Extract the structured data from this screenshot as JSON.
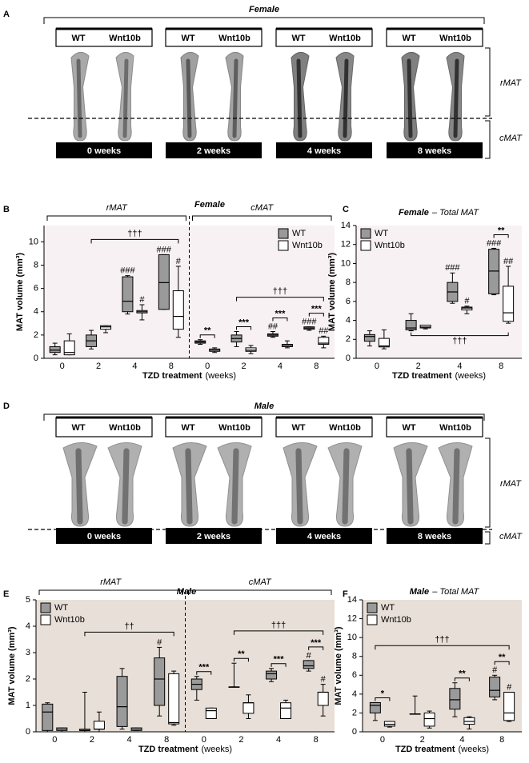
{
  "figure": {
    "panel_letters": [
      "A",
      "B",
      "C",
      "D",
      "E",
      "F"
    ],
    "image_panels": [
      {
        "title": "Female",
        "columns": [
          {
            "genotypes": [
              "WT",
              "Wnt10b"
            ],
            "label": "0 weeks"
          },
          {
            "genotypes": [
              "WT",
              "Wnt10b"
            ],
            "label": "2 weeks"
          },
          {
            "genotypes": [
              "WT",
              "Wnt10b"
            ],
            "label": "4 weeks"
          },
          {
            "genotypes": [
              "WT",
              "Wnt10b"
            ],
            "label": "8 weeks"
          }
        ],
        "regions": [
          "rMAT",
          "cMAT"
        ]
      },
      {
        "title": "Male",
        "columns": [
          {
            "genotypes": [
              "WT",
              "Wnt10b"
            ],
            "label": "0 weeks"
          },
          {
            "genotypes": [
              "WT",
              "Wnt10b"
            ],
            "label": "2 weeks"
          },
          {
            "genotypes": [
              "WT",
              "Wnt10b"
            ],
            "label": "4 weeks"
          },
          {
            "genotypes": [
              "WT",
              "Wnt10b"
            ],
            "label": "8 weeks"
          }
        ],
        "regions": [
          "rMAT",
          "cMAT"
        ]
      }
    ]
  },
  "chart_data": [
    {
      "type": "box",
      "title": "Female",
      "xlabel": "TZD treatment",
      "xlabel_unit": "(weeks)",
      "ylabel": "MAT volume (mm³)",
      "ylim": [
        0,
        11.4
      ],
      "yticks": [
        0,
        2,
        4,
        6,
        8,
        10
      ],
      "background": "#f7f1f3",
      "legend": "upper right",
      "series": [
        {
          "name": "WT",
          "color": "#9a9a9a"
        },
        {
          "name": "Wnt10b",
          "color": "#ffffff"
        }
      ],
      "groups": [
        {
          "label": "rMAT",
          "categories": [
            "0",
            "2",
            "4",
            "8"
          ],
          "values": [
            [
              [
                0.3,
                0.5,
                0.7,
                1.0,
                1.3
              ],
              [
                0.8,
                1.0,
                1.5,
                2.0,
                2.4
              ],
              [
                3.8,
                4.0,
                4.9,
                7.0,
                7.1
              ],
              [
                4.2,
                4.2,
                6.5,
                8.9,
                8.9
              ]
            ],
            [
              [
                0.3,
                0.3,
                0.5,
                1.5,
                2.1
              ],
              [
                2.2,
                2.5,
                2.7,
                2.8,
                2.8
              ],
              [
                3.3,
                3.9,
                4.0,
                4.1,
                4.6
              ],
              [
                1.8,
                2.5,
                3.6,
                5.8,
                7.9
              ]
            ]
          ],
          "hash": [
            [
              null,
              null,
              "###",
              "###"
            ],
            [
              null,
              null,
              "#",
              "#"
            ]
          ],
          "trend": {
            "label": "†††",
            "from": "2",
            "to": "8",
            "side": "above"
          }
        },
        {
          "label": "cMAT",
          "categories": [
            "0",
            "2",
            "4",
            "8"
          ],
          "values": [
            [
              [
                1.2,
                1.3,
                1.4,
                1.5,
                1.6
              ],
              [
                1.0,
                1.4,
                1.7,
                2.0,
                2.3
              ],
              [
                1.8,
                1.9,
                2.0,
                2.1,
                2.3
              ],
              [
                2.4,
                2.5,
                2.6,
                2.7,
                2.7
              ]
            ],
            [
              [
                0.5,
                0.6,
                0.7,
                0.8,
                0.9
              ],
              [
                0.4,
                0.6,
                0.7,
                0.9,
                1.1
              ],
              [
                0.9,
                1.0,
                1.1,
                1.2,
                1.5
              ],
              [
                0.9,
                1.2,
                1.3,
                1.8,
                1.9
              ]
            ]
          ],
          "hash": [
            [
              null,
              null,
              "##",
              "###"
            ],
            [
              null,
              null,
              null,
              "##"
            ]
          ],
          "stars": [
            "**",
            "***",
            "***",
            "***"
          ],
          "trend": {
            "label": "†††",
            "from": "2",
            "to": "8",
            "side": "above"
          }
        }
      ]
    },
    {
      "type": "box",
      "title": "Female",
      "title_note": "– Total MAT",
      "xlabel": "TZD treatment",
      "xlabel_unit": "(weeks)",
      "ylabel": "MAT volume (mm³)",
      "ylim": [
        0,
        14
      ],
      "yticks": [
        0,
        2,
        4,
        6,
        8,
        10,
        12,
        14
      ],
      "background": "#f7f1f3",
      "legend": "upper left",
      "series": [
        {
          "name": "WT",
          "color": "#9a9a9a"
        },
        {
          "name": "Wnt10b",
          "color": "#ffffff"
        }
      ],
      "groups": [
        {
          "categories": [
            "0",
            "2",
            "4",
            "8"
          ],
          "values": [
            [
              [
                1.3,
                1.8,
                2.3,
                2.5,
                2.9
              ],
              [
                2.9,
                3.0,
                3.2,
                4.0,
                4.7
              ],
              [
                5.8,
                6.0,
                7.0,
                8.0,
                9.0
              ],
              [
                6.7,
                6.8,
                9.2,
                11.5,
                11.6
              ]
            ],
            [
              [
                1.0,
                1.2,
                1.3,
                2.1,
                3.0
              ],
              [
                3.1,
                3.2,
                3.3,
                3.5,
                3.5
              ],
              [
                4.7,
                5.1,
                5.3,
                5.4,
                5.5
              ],
              [
                3.7,
                3.9,
                4.8,
                7.6,
                9.7
              ]
            ]
          ],
          "hash": [
            [
              null,
              null,
              "###",
              "###"
            ],
            [
              null,
              null,
              "#",
              "##"
            ]
          ],
          "stars": [
            null,
            null,
            null,
            "**"
          ],
          "trend": {
            "label": "†††",
            "from": "2",
            "to": "8",
            "side": "below"
          }
        }
      ]
    },
    {
      "type": "box",
      "title": "Male",
      "xlabel": "TZD treatment",
      "xlabel_unit": "(weeks)",
      "ylabel": "MAT volume (mm³)",
      "ylim": [
        0,
        5
      ],
      "yticks": [
        0,
        1,
        2,
        3,
        4,
        5
      ],
      "background": "#e8dfd8",
      "legend": "upper left",
      "series": [
        {
          "name": "WT",
          "color": "#9a9a9a"
        },
        {
          "name": "Wnt10b",
          "color": "#ffffff"
        }
      ],
      "groups": [
        {
          "label": "rMAT",
          "categories": [
            "0",
            "2",
            "4",
            "8"
          ],
          "values": [
            [
              [
                0,
                0.05,
                0.75,
                1.05,
                1.1
              ],
              [
                0,
                0.05,
                0.05,
                0.1,
                1.5
              ],
              [
                0.1,
                0.2,
                0.95,
                2.1,
                2.4
              ],
              [
                0.6,
                1.0,
                2.0,
                2.8,
                3.2
              ]
            ],
            [
              [
                0,
                0.05,
                0.1,
                0.15,
                0.15
              ],
              [
                0,
                0.1,
                0.1,
                0.4,
                0.75
              ],
              [
                0.05,
                0.05,
                0.1,
                0.15,
                0.15
              ],
              [
                0.25,
                0.3,
                0.35,
                2.2,
                2.3
              ]
            ]
          ],
          "hash": [
            [
              null,
              null,
              null,
              "#"
            ],
            [
              null,
              null,
              null,
              null
            ]
          ],
          "trend": {
            "label": "††",
            "from": "2",
            "to": "8",
            "side": "above"
          }
        },
        {
          "label": "cMAT",
          "categories": [
            "0",
            "2",
            "4",
            "8"
          ],
          "values": [
            [
              [
                1.2,
                1.6,
                1.8,
                2.0,
                2.1
              ],
              [
                1.7,
                1.7,
                1.7,
                1.7,
                2.6
              ],
              [
                1.9,
                2.0,
                2.2,
                2.3,
                2.4
              ],
              [
                2.3,
                2.4,
                2.5,
                2.7,
                2.7
              ]
            ],
            [
              [
                0.5,
                0.5,
                0.8,
                0.9,
                0.9
              ],
              [
                0.5,
                0.7,
                1.1,
                1.1,
                1.4
              ],
              [
                0.5,
                0.5,
                0.9,
                1.1,
                1.2
              ],
              [
                0.6,
                1.0,
                1.5,
                1.5,
                1.8
              ]
            ]
          ],
          "hash": [
            [
              null,
              null,
              null,
              "#"
            ],
            [
              null,
              null,
              null,
              "#"
            ]
          ],
          "stars": [
            "***",
            "**",
            "***",
            "***"
          ],
          "trend": {
            "label": "†††",
            "from": "2",
            "to": "8",
            "side": "above"
          }
        }
      ]
    },
    {
      "type": "box",
      "title": "Male",
      "title_note": "– Total MAT",
      "xlabel": "TZD treatment",
      "xlabel_unit": "(weeks)",
      "ylabel": "MAT volume (mm³)",
      "ylim": [
        0,
        14
      ],
      "yticks": [
        0,
        2,
        4,
        6,
        8,
        10,
        12,
        14
      ],
      "background": "#e8dfd8",
      "legend": "upper left",
      "series": [
        {
          "name": "WT",
          "color": "#9a9a9a"
        },
        {
          "name": "Wnt10b",
          "color": "#ffffff"
        }
      ],
      "groups": [
        {
          "categories": [
            "0",
            "2",
            "4",
            "8"
          ],
          "values": [
            [
              [
                1.2,
                2.0,
                2.8,
                3.1,
                3.1
              ],
              [
                1.9,
                1.9,
                1.9,
                1.9,
                3.8
              ],
              [
                1.6,
                2.4,
                3.4,
                4.6,
                5.2
              ],
              [
                3.4,
                3.7,
                4.4,
                5.8,
                6.0
              ]
            ],
            [
              [
                0.5,
                0.6,
                0.8,
                1.1,
                1.1
              ],
              [
                0.4,
                0.6,
                1.4,
                2.0,
                2.2
              ],
              [
                0.3,
                0.8,
                1.1,
                1.5,
                1.6
              ],
              [
                1.1,
                1.2,
                2.0,
                4.2,
                4.2
              ]
            ]
          ],
          "hash": [
            [
              null,
              null,
              null,
              "#"
            ],
            [
              null,
              null,
              null,
              "#"
            ]
          ],
          "stars": [
            "*",
            null,
            "**",
            "**"
          ],
          "trend": {
            "label": "†††",
            "from": "0",
            "to": "8",
            "side": "above"
          }
        }
      ]
    }
  ]
}
